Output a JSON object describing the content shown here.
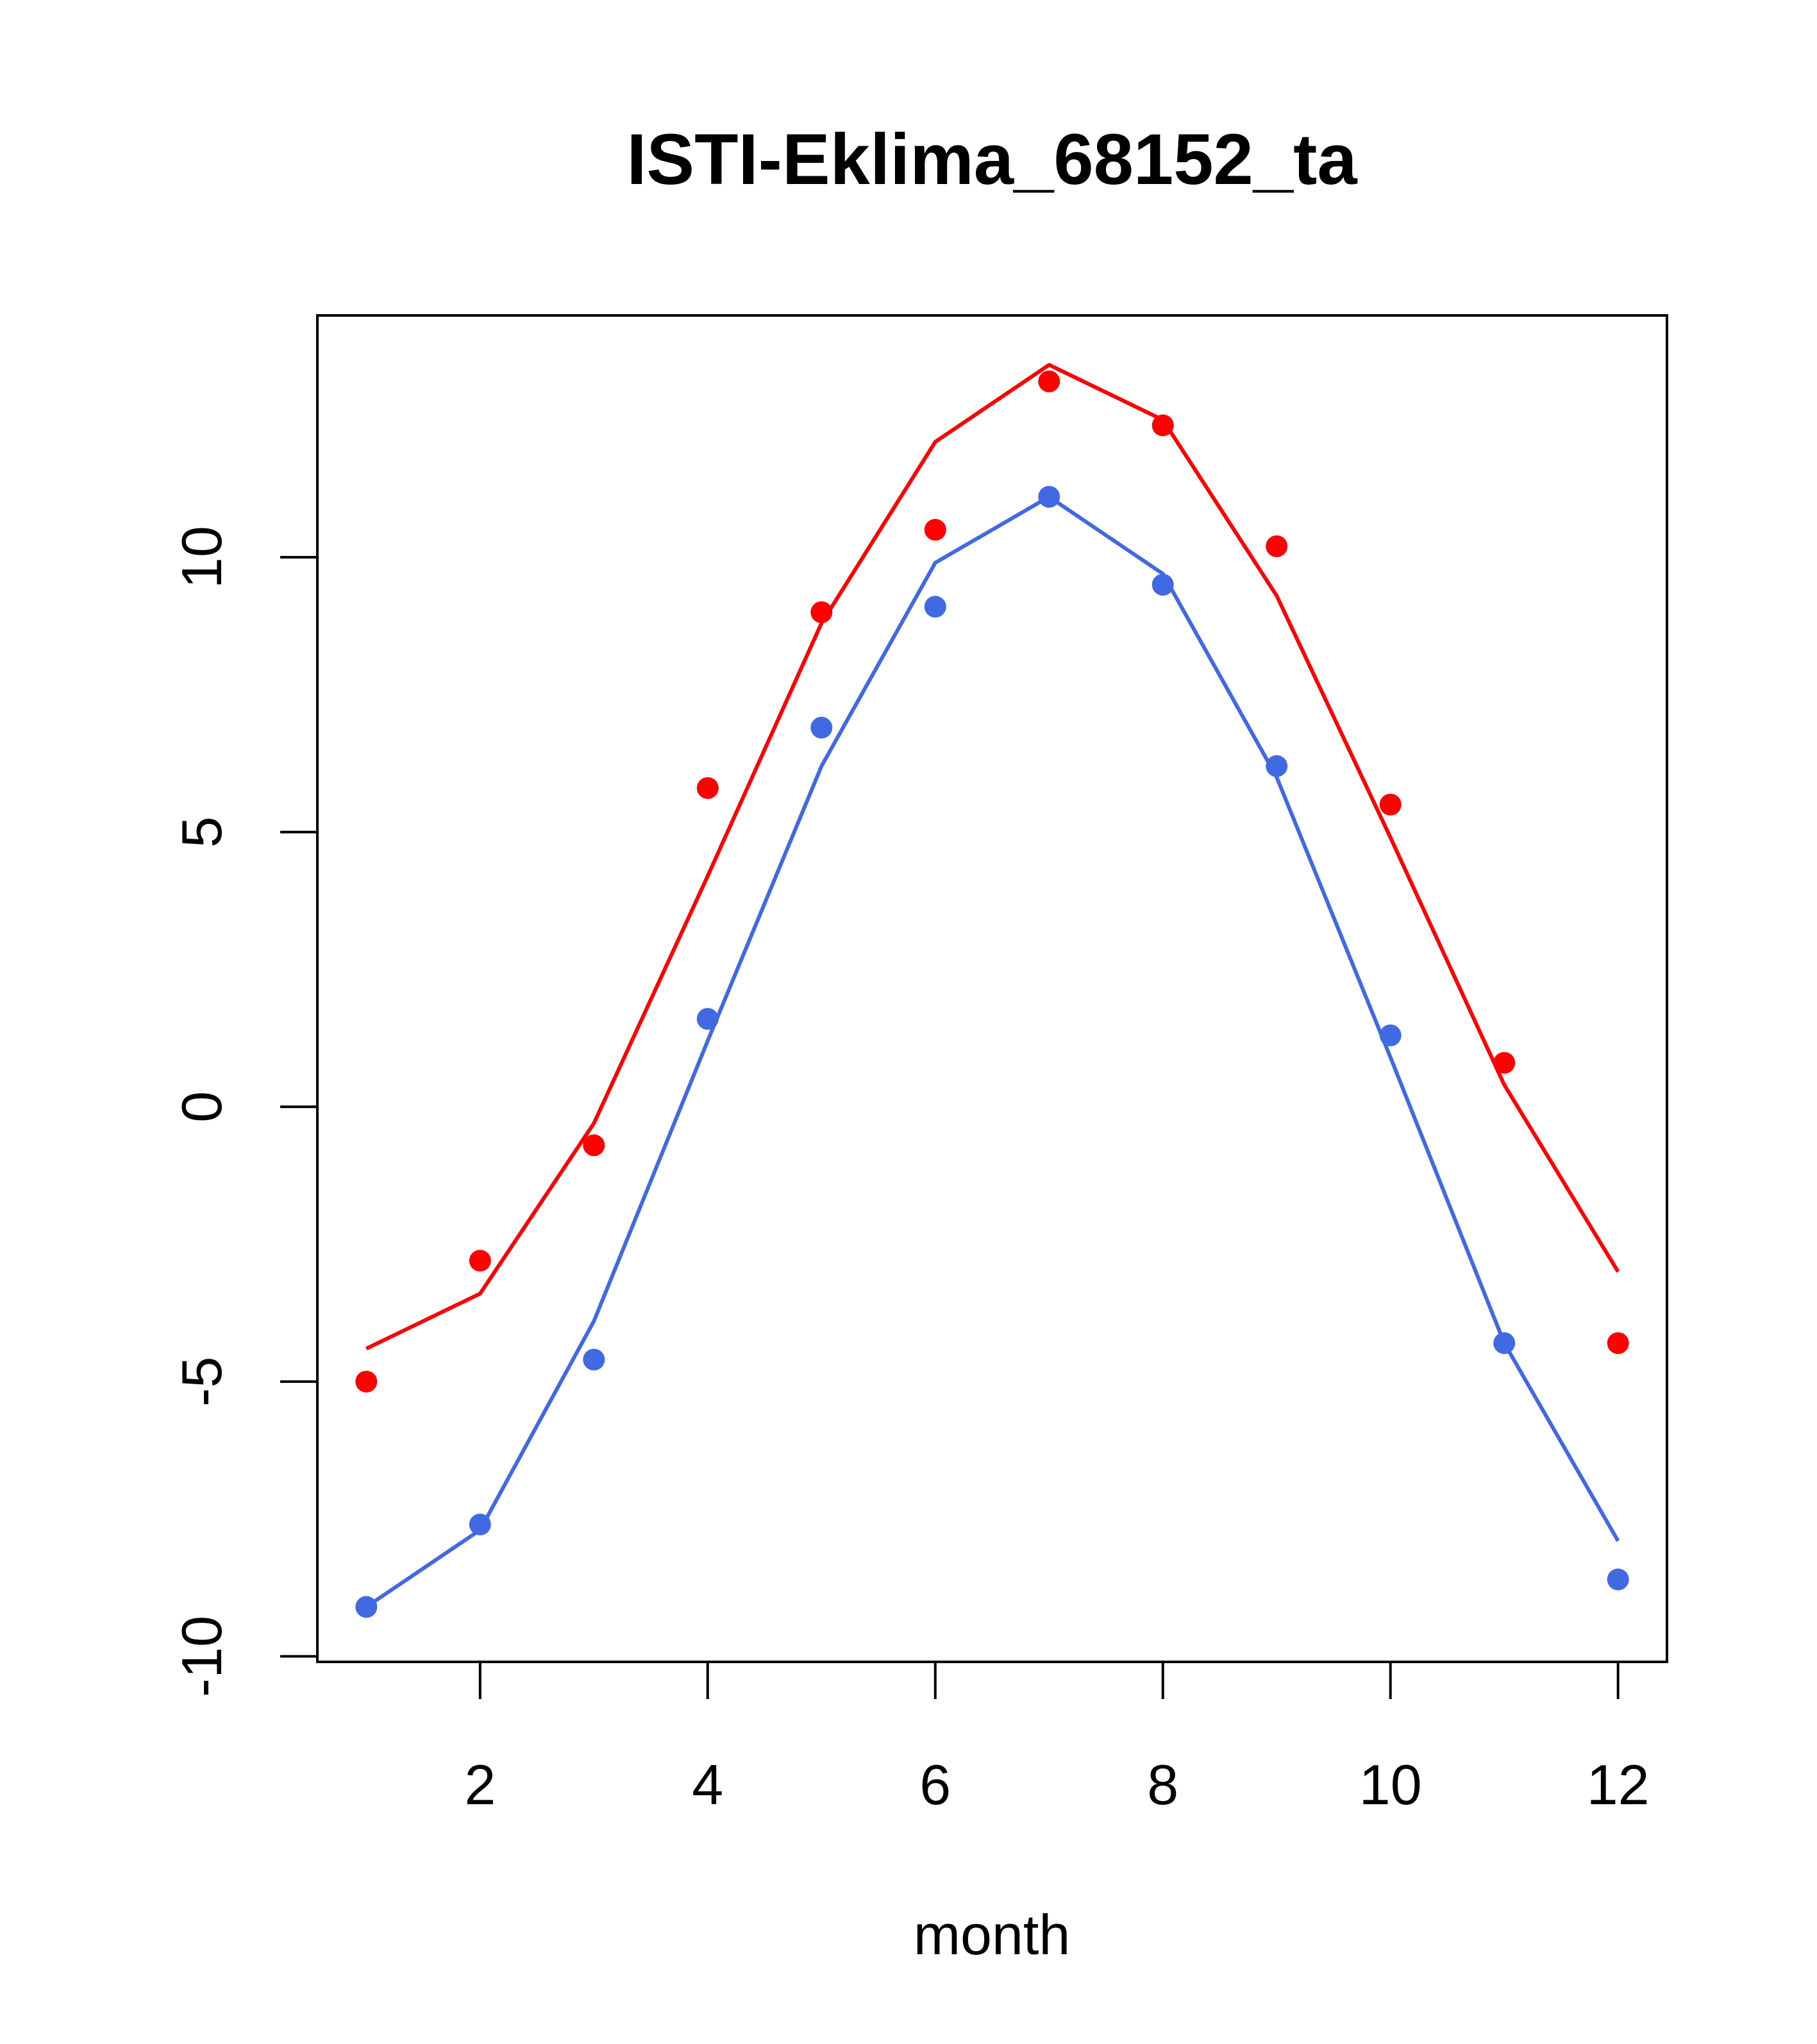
{
  "chart_data": {
    "type": "line",
    "title": "ISTI-Eklima_68152_ta",
    "xlabel": "month",
    "ylabel": "",
    "xlim": [
      0.57,
      12.43
    ],
    "ylim": [
      -10.1,
      14.4
    ],
    "xticks": [
      2,
      4,
      6,
      8,
      10,
      12
    ],
    "yticks": [
      -10,
      -5,
      0,
      5,
      10
    ],
    "x": [
      1,
      2,
      3,
      4,
      5,
      6,
      7,
      8,
      9,
      10,
      11,
      12
    ],
    "grid": false,
    "legend": "none",
    "series": [
      {
        "color": "#ff0000",
        "line": [
          -4.4,
          -3.4,
          -0.3,
          4.2,
          8.8,
          12.1,
          13.5,
          12.5,
          9.3,
          4.9,
          0.4,
          -3.0
        ],
        "points": [
          -5.0,
          -2.8,
          -0.7,
          5.8,
          9.0,
          10.5,
          13.2,
          12.4,
          10.2,
          5.5,
          0.8,
          -4.3
        ]
      },
      {
        "color": "#4169e1",
        "line": [
          -9.1,
          -7.7,
          -3.9,
          1.2,
          6.2,
          9.9,
          11.1,
          9.7,
          6.0,
          0.9,
          -4.3,
          -7.9
        ],
        "points": [
          -9.1,
          -7.6,
          -4.6,
          1.6,
          6.9,
          9.1,
          11.1,
          9.5,
          6.2,
          1.3,
          -4.3,
          -8.6
        ]
      }
    ]
  }
}
